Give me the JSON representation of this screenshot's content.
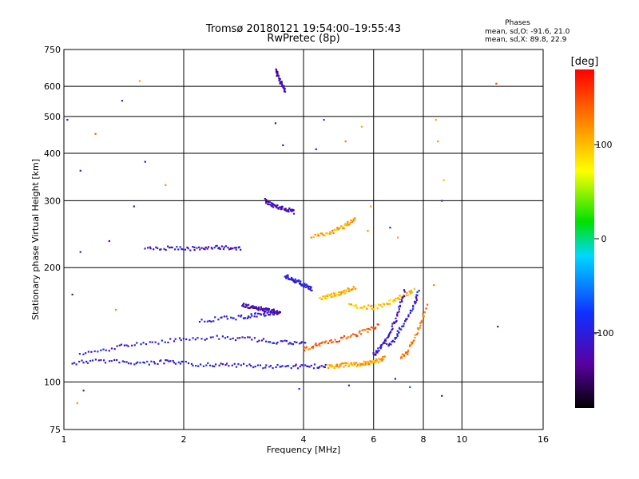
{
  "chart_data": {
    "type": "scatter",
    "title": "Tromsø 20180121 19:54:00–19:55:43",
    "subtitle": "RwPretec (8p)",
    "xlabel": "Frequency [MHz]",
    "ylabel": "Stationary phase Virtual Height [km]",
    "x_scale": "log2",
    "y_scale": "log",
    "xlim": [
      1,
      16
    ],
    "ylim": [
      75,
      750
    ],
    "x_ticks": [
      1,
      2,
      4,
      6,
      8,
      10,
      16
    ],
    "x_tick_labels": [
      "1",
      "2",
      "4",
      "6",
      "8",
      "10",
      "16"
    ],
    "x_gridlines": [
      2,
      4,
      6,
      8,
      10
    ],
    "y_ticks": [
      75,
      100,
      200,
      300,
      400,
      500,
      600,
      750
    ],
    "y_tick_labels": [
      "75",
      "100",
      "200",
      "300",
      "400",
      "500",
      "600",
      "750"
    ],
    "y_gridlines": [
      100,
      200,
      300,
      400,
      500,
      600
    ],
    "grid": true,
    "colorbar": {
      "label": "[deg]",
      "range": [
        -180,
        180
      ],
      "ticks": [
        100,
        0,
        -100
      ],
      "tick_labels": [
        "100",
        "0",
        "-100"
      ],
      "colormap": "rainbow"
    },
    "info_box": {
      "title": "Phases",
      "line_o": "mean, sd,O: -91.6, 21.0",
      "line_x": "mean, sd,X:  89.8, 22.9"
    },
    "traces": [
      {
        "name": "",
        "phase": -100,
        "x": [
          1.05,
          1.2,
          1.4,
          1.6,
          1.8,
          2.0,
          2.3,
          2.6,
          3.0,
          3.4,
          3.8,
          4.2,
          4.6
        ],
        "y": [
          112,
          114,
          113,
          112,
          113,
          112,
          111,
          111,
          110,
          110,
          110,
          110,
          110
        ]
      },
      {
        "name": "",
        "phase": -100,
        "x": [
          1.1,
          1.3,
          1.5,
          1.8,
          2.1,
          2.5,
          2.9,
          3.3,
          3.7,
          4.1
        ],
        "y": [
          118,
          122,
          126,
          128,
          130,
          131,
          130,
          128,
          127,
          126
        ]
      },
      {
        "name": "",
        "phase": -110,
        "x": [
          1.6,
          1.8,
          2.0,
          2.2,
          2.4,
          2.6,
          2.8
        ],
        "y": [
          224,
          225,
          225,
          224,
          226,
          226,
          225
        ]
      },
      {
        "name": "",
        "phase": -100,
        "x": [
          2.2,
          2.5,
          2.8,
          3.0,
          3.2,
          3.4
        ],
        "y": [
          145,
          147,
          148,
          150,
          151,
          152
        ]
      },
      {
        "name": "",
        "phase": -120,
        "x": [
          3.2,
          3.3,
          3.4,
          3.5,
          3.6,
          3.7,
          3.8
        ],
        "y": [
          300,
          295,
          290,
          288,
          285,
          283,
          280
        ]
      },
      {
        "name": "",
        "phase": -120,
        "x": [
          3.4,
          3.45,
          3.5,
          3.55,
          3.6
        ],
        "y": [
          660,
          640,
          620,
          600,
          580
        ]
      },
      {
        "name": "",
        "phase": 110,
        "x": [
          4.6,
          4.8,
          5.0,
          5.2,
          5.4,
          5.6,
          5.8,
          6.0,
          6.2,
          6.4
        ],
        "y": [
          110,
          110,
          111,
          111,
          111,
          112,
          112,
          113,
          114,
          116
        ]
      },
      {
        "name": "",
        "phase": 140,
        "x": [
          4.0,
          4.3,
          4.6,
          5.0,
          5.4,
          5.8,
          6.2
        ],
        "y": [
          122,
          125,
          127,
          130,
          133,
          137,
          141
        ]
      },
      {
        "name": "",
        "phase": 110,
        "x": [
          4.2,
          4.5,
          4.8,
          5.0,
          5.2,
          5.4
        ],
        "y": [
          240,
          245,
          250,
          255,
          262,
          270
        ]
      },
      {
        "name": "",
        "phase": 100,
        "x": [
          5.2,
          5.6,
          6.0,
          6.4,
          6.8,
          7.2,
          7.6
        ],
        "y": [
          160,
          158,
          157,
          160,
          165,
          170,
          175
        ]
      },
      {
        "name": "",
        "phase": -110,
        "x": [
          6.0,
          6.2,
          6.4,
          6.6,
          6.8,
          7.0,
          7.2
        ],
        "y": [
          118,
          122,
          128,
          135,
          145,
          160,
          175
        ]
      },
      {
        "name": "",
        "phase": -100,
        "x": [
          6.5,
          6.8,
          7.0,
          7.3,
          7.6,
          7.8
        ],
        "y": [
          125,
          130,
          138,
          148,
          160,
          175
        ]
      },
      {
        "name": "",
        "phase": 130,
        "x": [
          7.0,
          7.3,
          7.6,
          7.9,
          8.2
        ],
        "y": [
          115,
          120,
          130,
          145,
          160
        ]
      },
      {
        "name": "",
        "phase": 100,
        "x": [
          4.4,
          4.6,
          4.8,
          5.0,
          5.2,
          5.4
        ],
        "y": [
          165,
          168,
          170,
          172,
          175,
          178
        ]
      },
      {
        "name": "",
        "phase": -120,
        "x": [
          2.8,
          2.9,
          3.0,
          3.1,
          3.2,
          3.3,
          3.4,
          3.5
        ],
        "y": [
          160,
          158,
          157,
          156,
          155,
          154,
          153,
          152
        ]
      },
      {
        "name": "",
        "phase": -100,
        "x": [
          3.6,
          3.7,
          3.8,
          3.9,
          4.0,
          4.1,
          4.2
        ],
        "y": [
          190,
          188,
          185,
          183,
          180,
          178,
          175
        ]
      }
    ],
    "points": [
      {
        "x": 1.02,
        "y": 490,
        "phase": -110
      },
      {
        "x": 1.1,
        "y": 360,
        "phase": -100
      },
      {
        "x": 1.2,
        "y": 450,
        "phase": 140
      },
      {
        "x": 1.4,
        "y": 550,
        "phase": -100
      },
      {
        "x": 1.55,
        "y": 620,
        "phase": 110
      },
      {
        "x": 1.6,
        "y": 380,
        "phase": -120
      },
      {
        "x": 1.8,
        "y": 330,
        "phase": 120
      },
      {
        "x": 1.1,
        "y": 220,
        "phase": -100
      },
      {
        "x": 1.3,
        "y": 235,
        "phase": -130
      },
      {
        "x": 1.5,
        "y": 290,
        "phase": -100
      },
      {
        "x": 1.05,
        "y": 170,
        "phase": -100
      },
      {
        "x": 1.35,
        "y": 155,
        "phase": 30
      },
      {
        "x": 1.12,
        "y": 95,
        "phase": -100
      },
      {
        "x": 1.08,
        "y": 88,
        "phase": 120
      },
      {
        "x": 3.4,
        "y": 480,
        "phase": -120
      },
      {
        "x": 3.55,
        "y": 420,
        "phase": -110
      },
      {
        "x": 4.3,
        "y": 410,
        "phase": -100
      },
      {
        "x": 4.5,
        "y": 490,
        "phase": -80
      },
      {
        "x": 5.6,
        "y": 470,
        "phase": 110
      },
      {
        "x": 5.1,
        "y": 430,
        "phase": 130
      },
      {
        "x": 8.6,
        "y": 490,
        "phase": 110
      },
      {
        "x": 8.7,
        "y": 430,
        "phase": 120
      },
      {
        "x": 9.0,
        "y": 340,
        "phase": 100
      },
      {
        "x": 8.9,
        "y": 300,
        "phase": -100
      },
      {
        "x": 8.5,
        "y": 180,
        "phase": 130
      },
      {
        "x": 8.9,
        "y": 92,
        "phase": -100
      },
      {
        "x": 12.2,
        "y": 610,
        "phase": 150
      },
      {
        "x": 12.3,
        "y": 140,
        "phase": -110
      },
      {
        "x": 3.9,
        "y": 96,
        "phase": -100
      },
      {
        "x": 5.2,
        "y": 98,
        "phase": -100
      },
      {
        "x": 6.8,
        "y": 102,
        "phase": -100
      },
      {
        "x": 7.4,
        "y": 97,
        "phase": -60
      },
      {
        "x": 5.8,
        "y": 250,
        "phase": 120
      },
      {
        "x": 6.6,
        "y": 255,
        "phase": -100
      },
      {
        "x": 6.9,
        "y": 240,
        "phase": 110
      },
      {
        "x": 5.9,
        "y": 290,
        "phase": 110
      }
    ]
  }
}
